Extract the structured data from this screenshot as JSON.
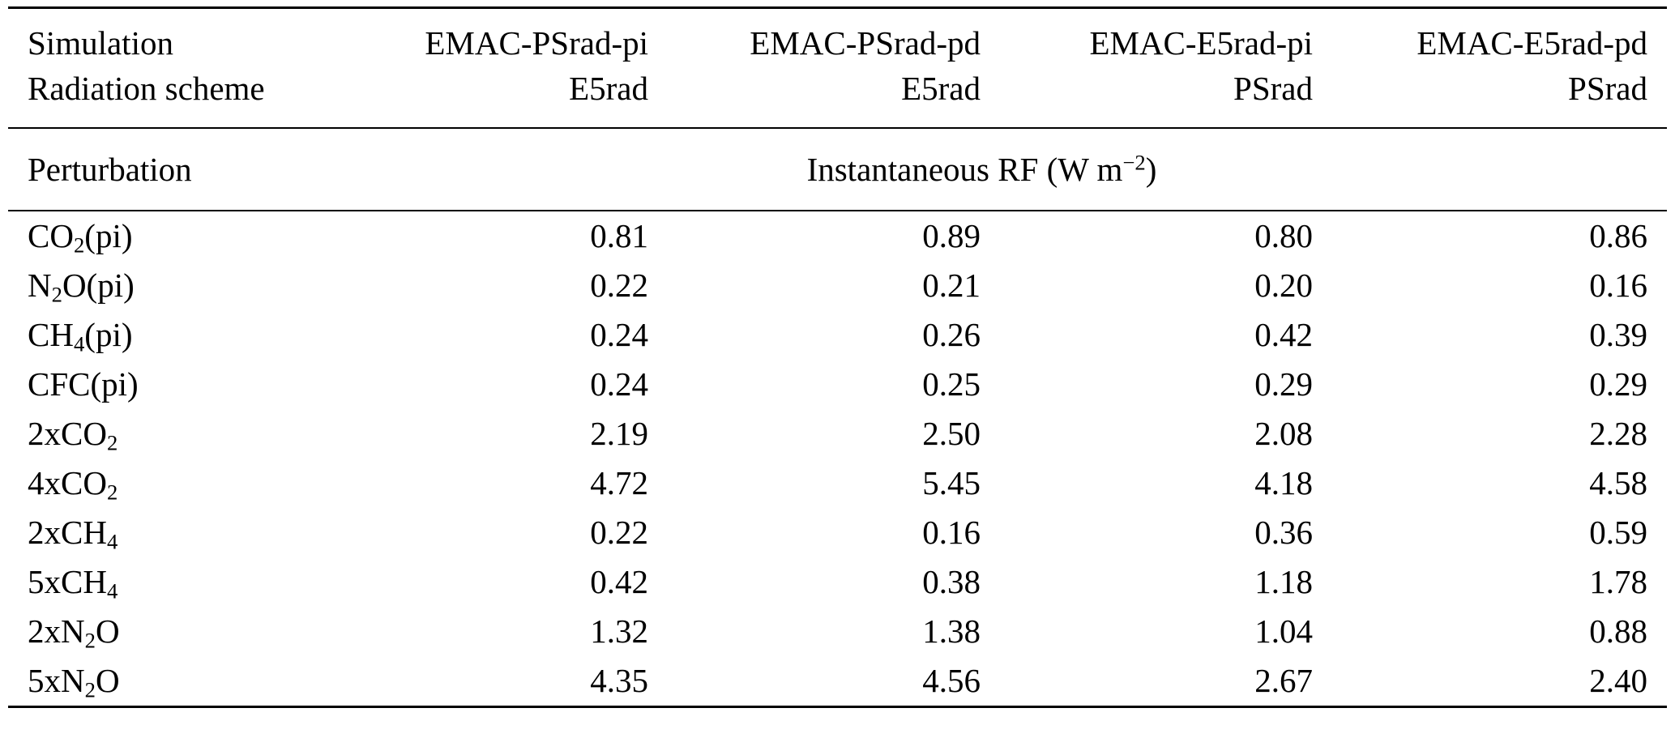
{
  "table": {
    "corner": {
      "row1": "Simulation",
      "row2": "Radiation scheme"
    },
    "columns": [
      {
        "name": "EMAC-PSrad-pi",
        "scheme": "E5rad"
      },
      {
        "name": "EMAC-PSrad-pd",
        "scheme": "E5rad"
      },
      {
        "name": "EMAC-E5rad-pi",
        "scheme": "PSrad"
      },
      {
        "name": "EMAC-E5rad-pd",
        "scheme": "PSrad"
      }
    ],
    "perturbation": {
      "label": "Perturbation",
      "rf_pre": "Instantaneous RF (W m",
      "rf_sup": "−2",
      "rf_post": ")"
    },
    "rows": [
      {
        "label": {
          "pre": "CO",
          "sub": "2",
          "post": "(pi)"
        },
        "values": [
          "0.81",
          "0.89",
          "0.80",
          "0.86"
        ]
      },
      {
        "label": {
          "pre": "N",
          "sub": "2",
          "post": "O(pi)"
        },
        "values": [
          "0.22",
          "0.21",
          "0.20",
          "0.16"
        ]
      },
      {
        "label": {
          "pre": "CH",
          "sub": "4",
          "post": "(pi)"
        },
        "values": [
          "0.24",
          "0.26",
          "0.42",
          "0.39"
        ]
      },
      {
        "label": {
          "pre": "CFC",
          "sub": "",
          "post": "(pi)"
        },
        "values": [
          "0.24",
          "0.25",
          "0.29",
          "0.29"
        ]
      },
      {
        "label": {
          "pre": "2xCO",
          "sub": "2",
          "post": ""
        },
        "values": [
          "2.19",
          "2.50",
          "2.08",
          "2.28"
        ]
      },
      {
        "label": {
          "pre": "4xCO",
          "sub": "2",
          "post": ""
        },
        "values": [
          "4.72",
          "5.45",
          "4.18",
          "4.58"
        ]
      },
      {
        "label": {
          "pre": "2xCH",
          "sub": "4",
          "post": ""
        },
        "values": [
          "0.22",
          "0.16",
          "0.36",
          "0.59"
        ]
      },
      {
        "label": {
          "pre": "5xCH",
          "sub": "4",
          "post": ""
        },
        "values": [
          "0.42",
          "0.38",
          "1.18",
          "1.78"
        ]
      },
      {
        "label": {
          "pre": "2xN",
          "sub": "2",
          "post": "O"
        },
        "values": [
          "1.32",
          "1.38",
          "1.04",
          "0.88"
        ]
      },
      {
        "label": {
          "pre": "5xN",
          "sub": "2",
          "post": "O"
        },
        "values": [
          "4.35",
          "4.56",
          "2.67",
          "2.40"
        ]
      }
    ],
    "colors": {
      "text": "#000000",
      "background": "#ffffff",
      "rule": "#000000"
    }
  }
}
